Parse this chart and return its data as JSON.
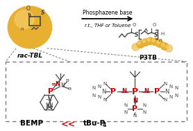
{
  "bg_color": "#ffffff",
  "dashed_box_color": "#777777",
  "gold_color": "#E8B030",
  "gold_light": "#F5D070",
  "red_color": "#CC0000",
  "gray_color": "#444444",
  "reaction_text1": "Phosphazene base",
  "reaction_text2": "r.t., THF or Toluene",
  "reactant_label": "rac-TBL",
  "product_label": "P3TB",
  "catalyst1": "BEMP",
  "less_than": "<<",
  "catalyst2_text": "tBu-P",
  "catalyst2_sub": "4",
  "figsize": [
    2.78,
    1.89
  ],
  "dpi": 100
}
